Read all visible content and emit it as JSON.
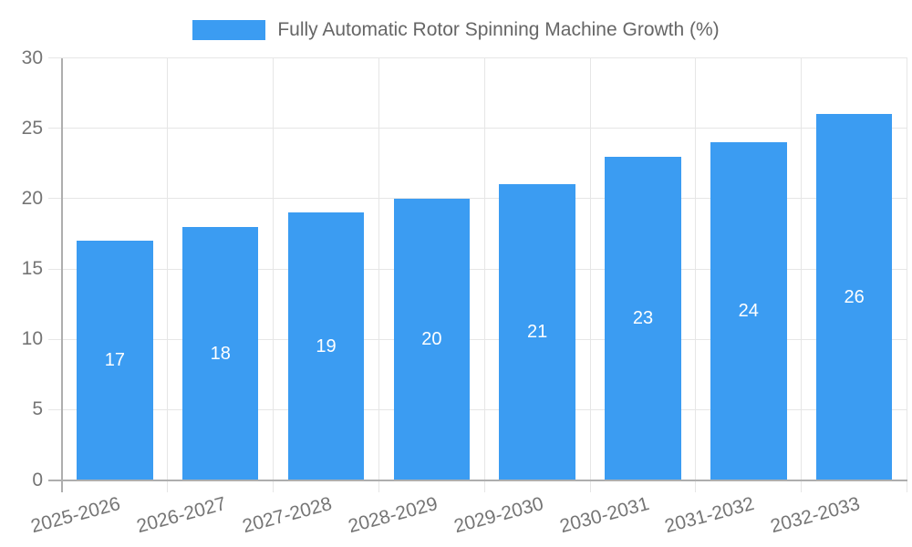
{
  "legend": {
    "label": "Fully Automatic Rotor Spinning Machine Growth (%)",
    "swatch_color": "#3b9cf2"
  },
  "chart_data": {
    "type": "bar",
    "title": "Fully Automatic Rotor Spinning Machine Growth (%)",
    "series_name": "Fully Automatic Rotor Spinning Machine Growth (%)",
    "categories": [
      "2025-2026",
      "2026-2027",
      "2027-2028",
      "2028-2029",
      "2029-2030",
      "2030-2031",
      "2031-2032",
      "2032-2033"
    ],
    "values": [
      17,
      18,
      19,
      20,
      21,
      23,
      24,
      26
    ],
    "xlabel": "",
    "ylabel": "",
    "ylim": [
      0,
      30
    ],
    "yticks": [
      0,
      5,
      10,
      15,
      20,
      25,
      30
    ],
    "grid": true,
    "legend_position": "top",
    "x_label_rotation_deg": -15,
    "colors": {
      "bar": "#3b9cf2",
      "value_label": "#ffffff",
      "gridline": "#e6e6e6",
      "axis_line": "#aeaeae",
      "tick_label": "#757575",
      "legend_text": "#666666",
      "background": "#ffffff"
    }
  }
}
